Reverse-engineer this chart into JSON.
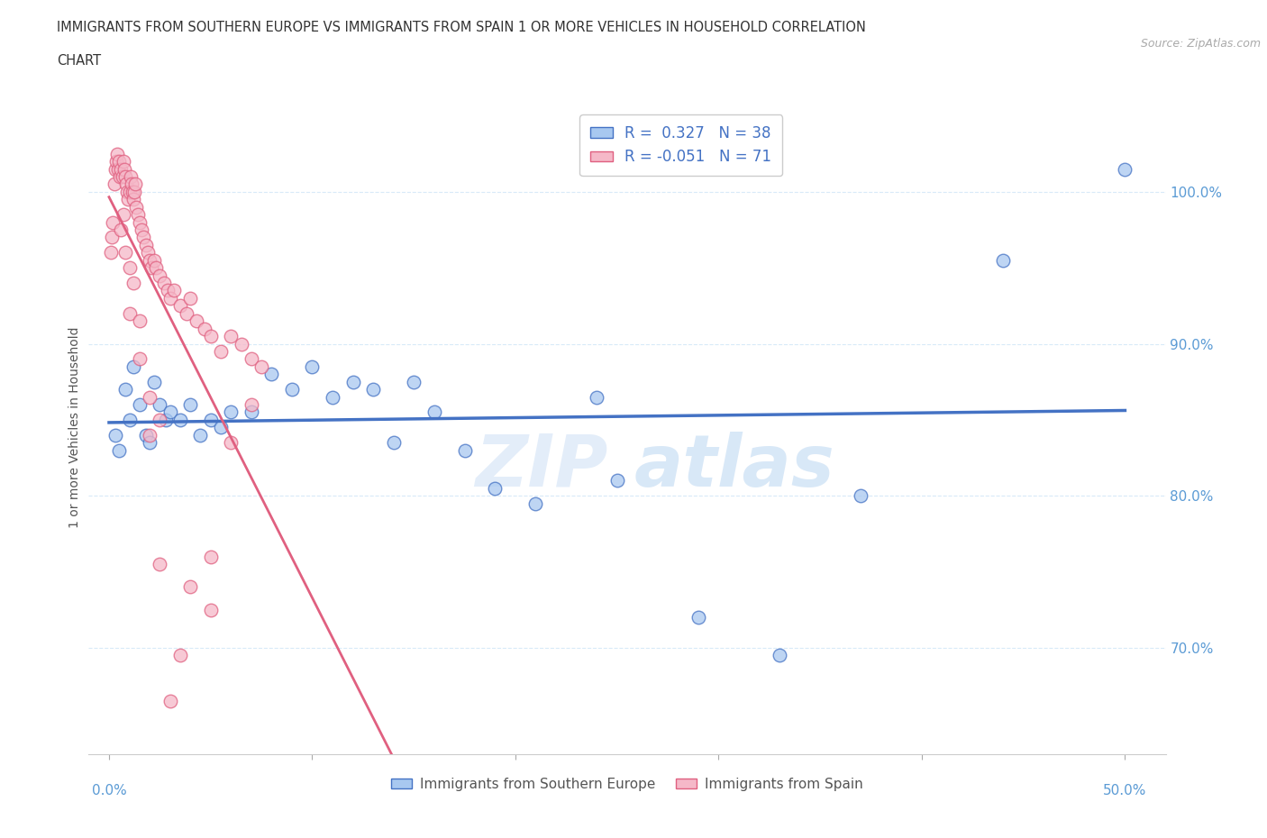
{
  "title_line1": "IMMIGRANTS FROM SOUTHERN EUROPE VS IMMIGRANTS FROM SPAIN 1 OR MORE VEHICLES IN HOUSEHOLD CORRELATION",
  "title_line2": "CHART",
  "source": "Source: ZipAtlas.com",
  "ylabel": "1 or more Vehicles in Household",
  "ylim": [
    63.0,
    106.0
  ],
  "xlim": [
    -1.0,
    52.0
  ],
  "yticks": [
    70.0,
    80.0,
    90.0,
    100.0
  ],
  "ytick_labels": [
    "70.0%",
    "80.0%",
    "90.0%",
    "100.0%"
  ],
  "blue_R": 0.327,
  "blue_N": 38,
  "pink_R": -0.051,
  "pink_N": 71,
  "blue_color": "#a8c8f0",
  "pink_color": "#f5b8c8",
  "blue_line_color": "#4472c4",
  "pink_line_color": "#e06080",
  "axis_label_color": "#5b9bd5",
  "grid_color": "#d8eaf8",
  "legend_R_color": "#4472c4",
  "watermark_color": "#cde0f5",
  "blue_x": [
    0.3,
    0.5,
    0.8,
    1.0,
    1.2,
    1.5,
    1.8,
    2.0,
    2.2,
    2.5,
    2.8,
    3.0,
    3.5,
    4.0,
    4.5,
    5.0,
    5.5,
    6.0,
    7.0,
    8.0,
    9.0,
    10.0,
    11.0,
    12.0,
    13.0,
    14.0,
    15.0,
    16.0,
    17.5,
    19.0,
    21.0,
    24.0,
    25.0,
    29.0,
    33.0,
    37.0,
    44.0,
    50.0
  ],
  "blue_y": [
    84.0,
    83.0,
    87.0,
    85.0,
    88.5,
    86.0,
    84.0,
    83.5,
    87.5,
    86.0,
    85.0,
    85.5,
    85.0,
    86.0,
    84.0,
    85.0,
    84.5,
    85.5,
    85.5,
    88.0,
    87.0,
    88.5,
    86.5,
    87.5,
    87.0,
    83.5,
    87.5,
    85.5,
    83.0,
    80.5,
    79.5,
    86.5,
    81.0,
    72.0,
    69.5,
    80.0,
    95.5,
    101.5
  ],
  "pink_x": [
    0.1,
    0.15,
    0.2,
    0.25,
    0.3,
    0.35,
    0.4,
    0.45,
    0.5,
    0.55,
    0.6,
    0.65,
    0.7,
    0.75,
    0.8,
    0.85,
    0.9,
    0.95,
    1.0,
    1.05,
    1.1,
    1.15,
    1.2,
    1.25,
    1.3,
    1.35,
    1.4,
    1.5,
    1.6,
    1.7,
    1.8,
    1.9,
    2.0,
    2.1,
    2.2,
    2.3,
    2.5,
    2.7,
    2.9,
    3.0,
    3.2,
    3.5,
    3.8,
    4.0,
    4.3,
    4.7,
    5.0,
    5.5,
    6.0,
    6.5,
    7.0,
    7.5,
    0.6,
    0.7,
    0.8,
    1.0,
    1.2,
    1.5,
    2.0,
    2.5,
    3.0,
    4.0,
    5.0,
    6.0,
    7.0,
    1.0,
    1.5,
    2.0,
    2.5,
    3.5,
    5.0
  ],
  "pink_y": [
    96.0,
    97.0,
    98.0,
    100.5,
    101.5,
    102.0,
    102.5,
    101.5,
    102.0,
    101.0,
    101.5,
    101.0,
    102.0,
    101.5,
    101.0,
    100.5,
    100.0,
    99.5,
    100.0,
    101.0,
    100.5,
    100.0,
    99.5,
    100.0,
    100.5,
    99.0,
    98.5,
    98.0,
    97.5,
    97.0,
    96.5,
    96.0,
    95.5,
    95.0,
    95.5,
    95.0,
    94.5,
    94.0,
    93.5,
    93.0,
    93.5,
    92.5,
    92.0,
    93.0,
    91.5,
    91.0,
    90.5,
    89.5,
    90.5,
    90.0,
    89.0,
    88.5,
    97.5,
    98.5,
    96.0,
    95.0,
    94.0,
    89.0,
    84.0,
    75.5,
    66.5,
    74.0,
    76.0,
    83.5,
    86.0,
    92.0,
    91.5,
    86.5,
    85.0,
    69.5,
    72.5
  ],
  "pink_solid_end_x": 20.0,
  "pink_dash_end_x": 50.0
}
